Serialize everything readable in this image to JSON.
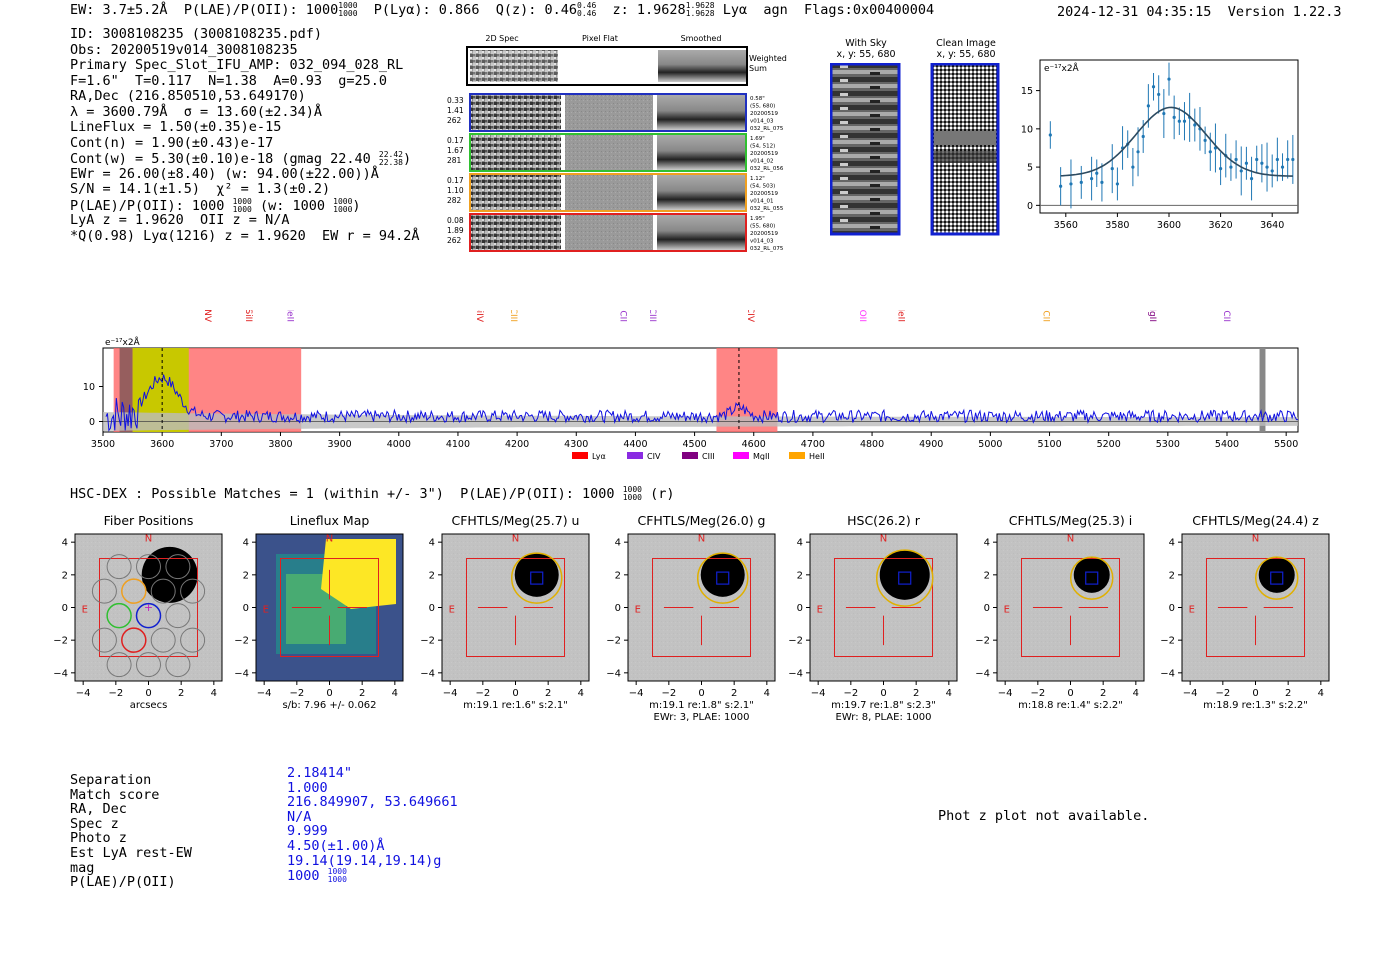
{
  "header": {
    "ew": "EW: 3.7±5.2Å",
    "plae_label": "P(LAE)/P(OII): 1000",
    "plae_hi": "1000",
    "plae_lo": "1000",
    "plya": "P(Lyα): 0.866",
    "qz": "Q(z): 0.46",
    "qz_hi": "0.46",
    "qz_lo": "0.46",
    "z": "z: 1.9628",
    "z_hi": "1.9628",
    "z_lo": "1.9628",
    "line": "Lyα",
    "agn": "agn",
    "flags": "Flags:0x00400004",
    "timestamp": "2024-12-31 04:35:15",
    "version": "Version 1.22.3"
  },
  "details": {
    "id": "ID: 3008108235 (3008108235.pdf)",
    "obs": "Obs: 20200519v014_3008108235",
    "primary": "Primary Spec_Slot_IFU_AMP: 032_094_028_RL",
    "fparams": "F=1.6\"  T=0.117  N=1.38  A=0.93  g=25.0",
    "radec": "RA,Dec (216.850510,53.649170)",
    "lambda": "λ = 3600.79Å  σ = 13.60(±2.34)Å",
    "lineflux": "LineFlux = 1.50(±0.35)e-15",
    "contn": "Cont(n) = 1.90(±0.43)e-17",
    "contw": "Cont(w) = 5.30(±0.10)e-18 (gmag 22.40",
    "contw_hi": "22.42",
    "contw_lo": "22.38",
    "ewr": "EWr = 26.00(±8.40) (w: 94.00(±22.00))Å",
    "sn": "S/N = 14.1(±1.5)  χ² = 1.3(±0.2)",
    "plae": "P(LAE)/P(OII): 1000",
    "plae_hi": "1000",
    "plae_lo": "1000",
    "plae_w": "(w: 1000",
    "plae_w_hi": "1000",
    "plae_w_lo": "1000",
    "lyaz": "LyA z = 1.9620  OII z = N/A",
    "q": "*Q(0.98) Lyα(1216) z = 1.9620  EW r = 94.2Å"
  },
  "spec2d": {
    "col_labels": [
      "2D Spec",
      "Pixel Flat",
      "Smoothed"
    ],
    "weighted": [
      "Weighted",
      "Sum"
    ],
    "rows": [
      {
        "vals": [
          "0.33",
          "1.41",
          "262"
        ],
        "info": [
          "0.58\"",
          "(55, 680)",
          "20200519",
          "v014_03",
          "032_RL_075"
        ],
        "color": "#2030c0"
      },
      {
        "vals": [
          "0.17",
          "1.67",
          "281"
        ],
        "info": [
          "1.69\"",
          "(54, 512)",
          "20200519",
          "v014_02",
          "032_RL_056"
        ],
        "color": "#30c030"
      },
      {
        "vals": [
          "0.17",
          "1.10",
          "282"
        ],
        "info": [
          "1.12\"",
          "(54, 503)",
          "20200519",
          "v014_01",
          "032_RL_055"
        ],
        "color": "#f0a020"
      },
      {
        "vals": [
          "0.08",
          "1.89",
          "262"
        ],
        "info": [
          "1.95\"",
          "(55, 680)",
          "20200519",
          "v014_03",
          "032_RL_075"
        ],
        "color": "#e02020"
      }
    ]
  },
  "cutouts": {
    "with_sky": {
      "title": "With Sky",
      "coords": "x, y: 55, 680"
    },
    "clean": {
      "title": "Clean Image",
      "coords": "x, y: 55, 680"
    }
  },
  "chart_data": [
    {
      "type": "scatter",
      "name": "line-fit",
      "units": "e$^{-17}$x2Å",
      "units_label": "e⁻¹⁷x2Å",
      "xlim": [
        3550,
        3650
      ],
      "ylim": [
        -1,
        19
      ],
      "xticks": [
        3560,
        3580,
        3600,
        3620,
        3640
      ],
      "yticks": [
        0,
        5,
        10,
        15
      ],
      "points": [
        [
          3554,
          9.2
        ],
        [
          3558,
          2.5
        ],
        [
          3562,
          2.8
        ],
        [
          3566,
          3.0
        ],
        [
          3570,
          3.5
        ],
        [
          3572,
          4.2
        ],
        [
          3574,
          3.0
        ],
        [
          3578,
          4.8
        ],
        [
          3580,
          2.8
        ],
        [
          3582,
          7.5
        ],
        [
          3584,
          8.0
        ],
        [
          3586,
          5.0
        ],
        [
          3588,
          7.0
        ],
        [
          3590,
          9.0
        ],
        [
          3592,
          13.0
        ],
        [
          3594,
          15.5
        ],
        [
          3596,
          14.5
        ],
        [
          3598,
          12.0
        ],
        [
          3600,
          16.5
        ],
        [
          3602,
          11.5
        ],
        [
          3604,
          11.0
        ],
        [
          3606,
          11.0
        ],
        [
          3608,
          11.5
        ],
        [
          3610,
          10.5
        ],
        [
          3612,
          10.0
        ],
        [
          3614,
          8.5
        ],
        [
          3616,
          7.0
        ],
        [
          3618,
          7.5
        ],
        [
          3620,
          4.8
        ],
        [
          3622,
          6.5
        ],
        [
          3624,
          5.0
        ],
        [
          3626,
          6.0
        ],
        [
          3628,
          4.5
        ],
        [
          3630,
          5.5
        ],
        [
          3632,
          3.5
        ],
        [
          3634,
          6.0
        ],
        [
          3636,
          5.5
        ],
        [
          3638,
          5.0
        ],
        [
          3640,
          4.5
        ],
        [
          3642,
          6.0
        ],
        [
          3644,
          5.0
        ],
        [
          3646,
          6.0
        ],
        [
          3648,
          6.0
        ]
      ],
      "fit": {
        "center": 3600.79,
        "sigma": 13.6,
        "amp": 9.0,
        "base": 3.8
      }
    },
    {
      "type": "line",
      "name": "full-spectrum",
      "units_label": "e⁻¹⁷x2Å",
      "xlim": [
        3500,
        5520
      ],
      "ylim": [
        -3,
        21
      ],
      "xticks": [
        3500,
        3600,
        3700,
        3800,
        3900,
        4000,
        4100,
        4200,
        4300,
        4400,
        4500,
        4600,
        4700,
        4800,
        4900,
        5000,
        5100,
        5200,
        5300,
        5400,
        5500
      ],
      "yticks": [
        0,
        10
      ],
      "lines": [
        {
          "label": "NV",
          "x": 3672,
          "color": "#e02020"
        },
        {
          "label": "SiII",
          "x": 3742,
          "color": "#e02020"
        },
        {
          "label": "HeII",
          "x": 3812,
          "color": "#9933cc"
        },
        {
          "label": "SiIV",
          "x": 4132,
          "color": "#e02020"
        },
        {
          "label": "CIII",
          "x": 4190,
          "color": "#f0a020"
        },
        {
          "label": "CII",
          "x": 4375,
          "color": "#9933cc"
        },
        {
          "label": "CIII",
          "x": 4425,
          "color": "#9933cc"
        },
        {
          "label": "CIV",
          "x": 4590,
          "color": "#e02020"
        },
        {
          "label": "OII",
          "x": 4780,
          "color": "#ff33ff"
        },
        {
          "label": "HeII",
          "x": 4845,
          "color": "#e02020"
        },
        {
          "label": "CII",
          "x": 5090,
          "color": "#f0a020"
        },
        {
          "label": "MgII",
          "x": 5270,
          "color": "#800080"
        },
        {
          "label": "CII",
          "x": 5395,
          "color": "#9933cc"
        }
      ],
      "legend": [
        {
          "label": "Lyα",
          "color": "#ff0000"
        },
        {
          "label": "CIV",
          "color": "#8a2be2"
        },
        {
          "label": "CIII",
          "color": "#800080"
        },
        {
          "label": "MgII",
          "color": "#ff00ff"
        },
        {
          "label": "HeII",
          "color": "#ffa500"
        }
      ]
    }
  ],
  "hsc": {
    "line": "HSC-DEX : Possible Matches = 1 (within +/- 3\")  P(LAE)/P(OII): 1000",
    "hi": "1000",
    "lo": "1000",
    "suffix": "(r)"
  },
  "panels": [
    {
      "title": "Fiber Positions",
      "caption": "arcsecs",
      "caption2": ""
    },
    {
      "title": "Lineflux Map",
      "caption": "s/b: 7.96 +/- 0.062",
      "caption2": ""
    },
    {
      "title": "CFHTLS/Meg(25.7) u",
      "caption": "m:19.1  re:1.6\"  s:2.1\"",
      "caption2": ""
    },
    {
      "title": "CFHTLS/Meg(26.0) g",
      "caption": "m:19.1  re:1.8\"  s:2.1\"",
      "caption2": "EWr: 3, PLAE: 1000"
    },
    {
      "title": "HSC(26.2) r",
      "caption": "m:19.7  re:1.8\"  s:2.3\"",
      "caption2": "EWr: 8, PLAE: 1000"
    },
    {
      "title": "CFHTLS/Meg(25.3) i",
      "caption": "m:18.8  re:1.4\"  s:2.2\"",
      "caption2": ""
    },
    {
      "title": "CFHTLS/Meg(24.4) z",
      "caption": "m:18.9  re:1.3\"  s:2.2\"",
      "caption2": ""
    }
  ],
  "panel_axis": {
    "ticks": [
      "−4",
      "−2",
      "0",
      "2",
      "4"
    ],
    "north": "N",
    "east": "E"
  },
  "match": {
    "labels": [
      "Separation",
      "Match score",
      "RA, Dec",
      "Spec z",
      "Photo z",
      "Est LyA rest-EW",
      "mag",
      "P(LAE)/P(OII)"
    ],
    "values": [
      "2.18414\"",
      "1.000",
      "216.849907, 53.649661",
      "N/A",
      "9.999",
      "4.50(±1.00)Å",
      "19.14(19.14,19.14)g",
      "1000"
    ],
    "plae_hi": "1000",
    "plae_lo": "1000"
  },
  "photz": "Phot z plot not available."
}
